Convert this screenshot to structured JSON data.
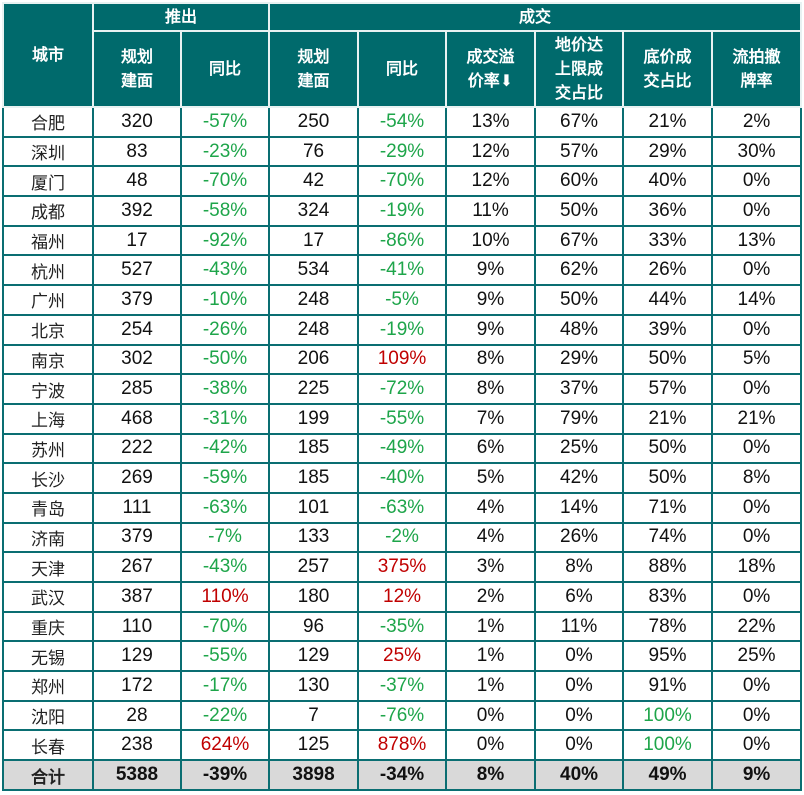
{
  "colors": {
    "header_bg": "#006a6c",
    "border": "#0a6e72",
    "negative": "#1ea54a",
    "positive": "#c00000",
    "total_bg": "#d9d9d9"
  },
  "header": {
    "city": "城市",
    "group_launch": "推出",
    "group_deal": "成交",
    "columns": [
      "规划\n建面",
      "同比",
      "规划\n建面",
      "同比",
      "成交溢\n价率⬇",
      "地价达\n上限成\n交占比",
      "底价成\n交占比",
      "流拍撤\n牌率"
    ]
  },
  "rows": [
    [
      "合肥",
      "320",
      "-57%",
      "250",
      "-54%",
      "13%",
      "67%",
      "21%",
      "2%"
    ],
    [
      "深圳",
      "83",
      "-23%",
      "76",
      "-29%",
      "12%",
      "57%",
      "29%",
      "30%"
    ],
    [
      "厦门",
      "48",
      "-70%",
      "42",
      "-70%",
      "12%",
      "60%",
      "40%",
      "0%"
    ],
    [
      "成都",
      "392",
      "-58%",
      "324",
      "-19%",
      "11%",
      "50%",
      "36%",
      "0%"
    ],
    [
      "福州",
      "17",
      "-92%",
      "17",
      "-86%",
      "10%",
      "67%",
      "33%",
      "13%"
    ],
    [
      "杭州",
      "527",
      "-43%",
      "534",
      "-41%",
      "9%",
      "62%",
      "26%",
      "0%"
    ],
    [
      "广州",
      "379",
      "-10%",
      "248",
      "-5%",
      "9%",
      "50%",
      "44%",
      "14%"
    ],
    [
      "北京",
      "254",
      "-26%",
      "248",
      "-19%",
      "9%",
      "48%",
      "39%",
      "0%"
    ],
    [
      "南京",
      "302",
      "-50%",
      "206",
      "109%",
      "8%",
      "29%",
      "50%",
      "5%"
    ],
    [
      "宁波",
      "285",
      "-38%",
      "225",
      "-72%",
      "8%",
      "37%",
      "57%",
      "0%"
    ],
    [
      "上海",
      "468",
      "-31%",
      "199",
      "-55%",
      "7%",
      "79%",
      "21%",
      "21%"
    ],
    [
      "苏州",
      "222",
      "-42%",
      "185",
      "-49%",
      "6%",
      "25%",
      "50%",
      "0%"
    ],
    [
      "长沙",
      "269",
      "-59%",
      "185",
      "-40%",
      "5%",
      "42%",
      "50%",
      "8%"
    ],
    [
      "青岛",
      "111",
      "-63%",
      "101",
      "-63%",
      "4%",
      "14%",
      "71%",
      "0%"
    ],
    [
      "济南",
      "379",
      "-7%",
      "133",
      "-2%",
      "4%",
      "26%",
      "74%",
      "0%"
    ],
    [
      "天津",
      "267",
      "-43%",
      "257",
      "375%",
      "3%",
      "8%",
      "88%",
      "18%"
    ],
    [
      "武汉",
      "387",
      "110%",
      "180",
      "12%",
      "2%",
      "6%",
      "83%",
      "0%"
    ],
    [
      "重庆",
      "110",
      "-70%",
      "96",
      "-35%",
      "1%",
      "11%",
      "78%",
      "22%"
    ],
    [
      "无锡",
      "129",
      "-55%",
      "129",
      "25%",
      "1%",
      "0%",
      "95%",
      "25%"
    ],
    [
      "郑州",
      "172",
      "-17%",
      "130",
      "-37%",
      "1%",
      "0%",
      "91%",
      "0%"
    ],
    [
      "沈阳",
      "28",
      "-22%",
      "7",
      "-76%",
      "0%",
      "0%",
      "100%",
      "0%"
    ],
    [
      "长春",
      "238",
      "624%",
      "125",
      "878%",
      "0%",
      "0%",
      "100%",
      "0%"
    ]
  ],
  "total": [
    "合计",
    "5388",
    "-39%",
    "3898",
    "-34%",
    "8%",
    "40%",
    "49%",
    "9%"
  ]
}
